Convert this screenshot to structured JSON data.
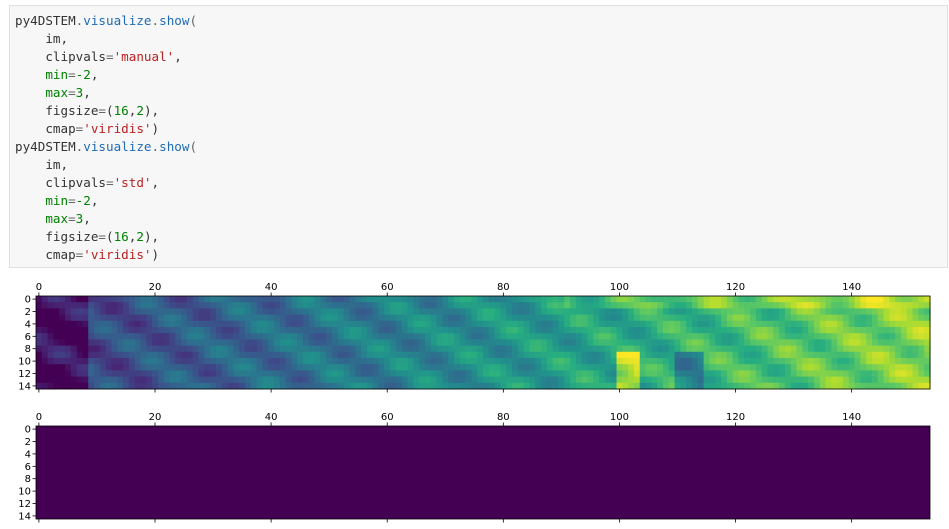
{
  "code_cell": {
    "lines": [
      [
        {
          "t": "py4DSTEM",
          "c": "obj"
        },
        {
          "t": ".",
          "c": "op"
        },
        {
          "t": "visualize",
          "c": "attr"
        },
        {
          "t": ".",
          "c": "op"
        },
        {
          "t": "show",
          "c": "attr"
        },
        {
          "t": "(",
          "c": "op"
        }
      ],
      [
        {
          "t": "    im,",
          "c": "obj"
        }
      ],
      [
        {
          "t": "    clipvals",
          "c": "obj"
        },
        {
          "t": "=",
          "c": "op"
        },
        {
          "t": "'manual'",
          "c": "str"
        },
        {
          "t": ",",
          "c": "obj"
        }
      ],
      [
        {
          "t": "    min",
          "c": "kw"
        },
        {
          "t": "=",
          "c": "op"
        },
        {
          "t": "-2",
          "c": "num"
        },
        {
          "t": ",",
          "c": "obj"
        }
      ],
      [
        {
          "t": "    max",
          "c": "kw"
        },
        {
          "t": "=",
          "c": "op"
        },
        {
          "t": "3",
          "c": "num"
        },
        {
          "t": ",",
          "c": "obj"
        }
      ],
      [
        {
          "t": "    figsize",
          "c": "obj"
        },
        {
          "t": "=",
          "c": "op"
        },
        {
          "t": "(",
          "c": "obj"
        },
        {
          "t": "16",
          "c": "num"
        },
        {
          "t": ",",
          "c": "obj"
        },
        {
          "t": "2",
          "c": "num"
        },
        {
          "t": "),",
          "c": "obj"
        }
      ],
      [
        {
          "t": "    cmap",
          "c": "obj"
        },
        {
          "t": "=",
          "c": "op"
        },
        {
          "t": "'viridis'",
          "c": "str"
        },
        {
          "t": ")",
          "c": "obj"
        }
      ],
      [
        {
          "t": "py4DSTEM",
          "c": "obj"
        },
        {
          "t": ".",
          "c": "op"
        },
        {
          "t": "visualize",
          "c": "attr"
        },
        {
          "t": ".",
          "c": "op"
        },
        {
          "t": "show",
          "c": "attr"
        },
        {
          "t": "(",
          "c": "op"
        }
      ],
      [
        {
          "t": "    im,",
          "c": "obj"
        }
      ],
      [
        {
          "t": "    clipvals",
          "c": "obj"
        },
        {
          "t": "=",
          "c": "op"
        },
        {
          "t": "'std'",
          "c": "str"
        },
        {
          "t": ",",
          "c": "obj"
        }
      ],
      [
        {
          "t": "    min",
          "c": "kw"
        },
        {
          "t": "=",
          "c": "op"
        },
        {
          "t": "-2",
          "c": "num"
        },
        {
          "t": ",",
          "c": "obj"
        }
      ],
      [
        {
          "t": "    max",
          "c": "kw"
        },
        {
          "t": "=",
          "c": "op"
        },
        {
          "t": "3",
          "c": "num"
        },
        {
          "t": ",",
          "c": "obj"
        }
      ],
      [
        {
          "t": "    figsize",
          "c": "obj"
        },
        {
          "t": "=",
          "c": "op"
        },
        {
          "t": "(",
          "c": "obj"
        },
        {
          "t": "16",
          "c": "num"
        },
        {
          "t": ",",
          "c": "obj"
        },
        {
          "t": "2",
          "c": "num"
        },
        {
          "t": "),",
          "c": "obj"
        }
      ],
      [
        {
          "t": "    cmap",
          "c": "obj"
        },
        {
          "t": "=",
          "c": "op"
        },
        {
          "t": "'viridis'",
          "c": "str"
        },
        {
          "t": ")",
          "c": "obj"
        }
      ]
    ]
  },
  "colors": {
    "cell_bg": "#f7f7f7",
    "uniform_plot": "#440154",
    "viridis": [
      "#440154",
      "#472d7b",
      "#3b528b",
      "#2c728e",
      "#21918c",
      "#28ae80",
      "#5ec962",
      "#addc30",
      "#fde725"
    ]
  },
  "chart_data": [
    {
      "type": "heatmap",
      "cmap": "viridis",
      "x_ticks": [
        "0",
        "20",
        "40",
        "60",
        "80",
        "100",
        "120",
        "140"
      ],
      "y_ticks": [
        "0",
        "2",
        "4",
        "6",
        "8",
        "10",
        "12",
        "14"
      ],
      "x_range": [
        0,
        154
      ],
      "y_range": [
        0,
        15
      ],
      "grid": false
    },
    {
      "type": "heatmap",
      "cmap": "viridis",
      "uniform": true,
      "x_ticks": [
        "0",
        "20",
        "40",
        "60",
        "80",
        "100",
        "120",
        "140"
      ],
      "y_ticks": [
        "0",
        "2",
        "4",
        "6",
        "8",
        "10",
        "12",
        "14"
      ],
      "x_range": [
        0,
        154
      ],
      "y_range": [
        0,
        15
      ],
      "grid": false
    }
  ]
}
